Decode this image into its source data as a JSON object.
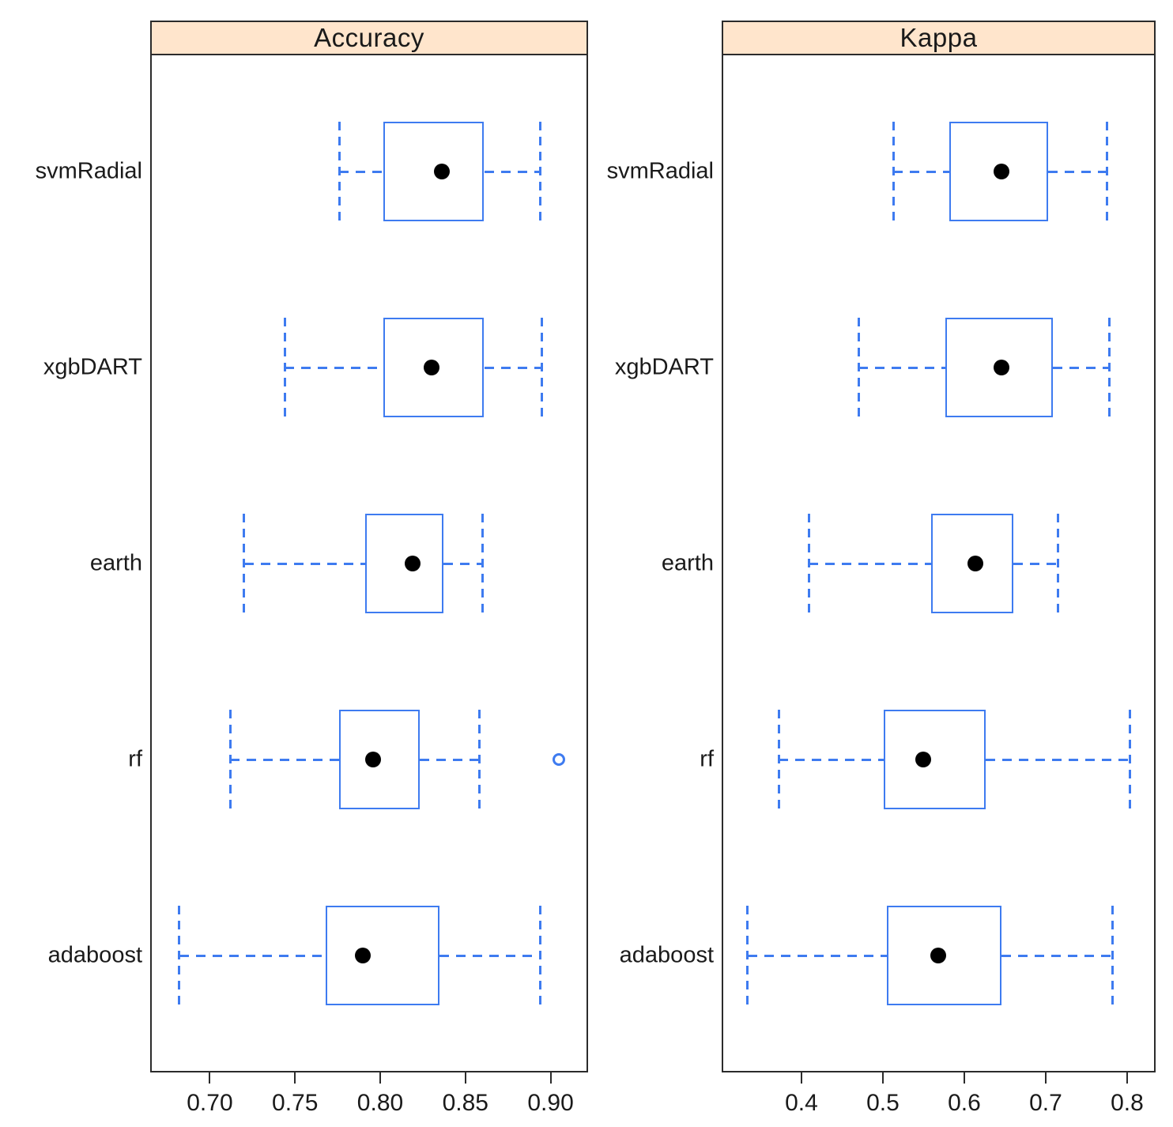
{
  "figure": {
    "background": "#ffffff",
    "strip_fill": "#ffe5cc",
    "frame_color": "#2b2b2b",
    "box_color": "#3e7bf0",
    "median_dot_color": "#000000",
    "text_color": "#1a1a1a"
  },
  "chart_data": {
    "type": "boxplot",
    "orientation": "horizontal",
    "grid": false,
    "legend": "none",
    "categories_top_to_bottom": [
      "svmRadial",
      "xgbDART",
      "earth",
      "rf",
      "adaboost"
    ],
    "panels": [
      {
        "title": "Accuracy",
        "xlim": [
          0.665,
          0.922
        ],
        "xticks": [
          0.7,
          0.75,
          0.8,
          0.85,
          0.9
        ],
        "xtick_labels": [
          "0.70",
          "0.75",
          "0.80",
          "0.85",
          "0.90"
        ],
        "boxes": [
          {
            "category": "svmRadial",
            "whisker_low": 0.776,
            "q1": 0.802,
            "median": 0.836,
            "q3": 0.861,
            "whisker_high": 0.894,
            "outliers": []
          },
          {
            "category": "xgbDART",
            "whisker_low": 0.744,
            "q1": 0.802,
            "median": 0.83,
            "q3": 0.861,
            "whisker_high": 0.895,
            "outliers": []
          },
          {
            "category": "earth",
            "whisker_low": 0.72,
            "q1": 0.791,
            "median": 0.819,
            "q3": 0.837,
            "whisker_high": 0.86,
            "outliers": []
          },
          {
            "category": "rf",
            "whisker_low": 0.712,
            "q1": 0.776,
            "median": 0.796,
            "q3": 0.823,
            "whisker_high": 0.858,
            "outliers": [
              0.905
            ]
          },
          {
            "category": "adaboost",
            "whisker_low": 0.682,
            "q1": 0.768,
            "median": 0.79,
            "q3": 0.835,
            "whisker_high": 0.894,
            "outliers": []
          }
        ]
      },
      {
        "title": "Kappa",
        "xlim": [
          0.302,
          0.835
        ],
        "xticks": [
          0.4,
          0.5,
          0.6,
          0.7,
          0.8
        ],
        "xtick_labels": [
          "0.4",
          "0.5",
          "0.6",
          "0.7",
          "0.8"
        ],
        "boxes": [
          {
            "category": "svmRadial",
            "whisker_low": 0.513,
            "q1": 0.582,
            "median": 0.646,
            "q3": 0.703,
            "whisker_high": 0.775,
            "outliers": []
          },
          {
            "category": "xgbDART",
            "whisker_low": 0.47,
            "q1": 0.577,
            "median": 0.646,
            "q3": 0.709,
            "whisker_high": 0.778,
            "outliers": []
          },
          {
            "category": "earth",
            "whisker_low": 0.409,
            "q1": 0.559,
            "median": 0.614,
            "q3": 0.66,
            "whisker_high": 0.715,
            "outliers": []
          },
          {
            "category": "rf",
            "whisker_low": 0.372,
            "q1": 0.501,
            "median": 0.55,
            "q3": 0.626,
            "whisker_high": 0.803,
            "outliers": []
          },
          {
            "category": "adaboost",
            "whisker_low": 0.334,
            "q1": 0.505,
            "median": 0.568,
            "q3": 0.646,
            "whisker_high": 0.782,
            "outliers": []
          }
        ]
      }
    ]
  }
}
